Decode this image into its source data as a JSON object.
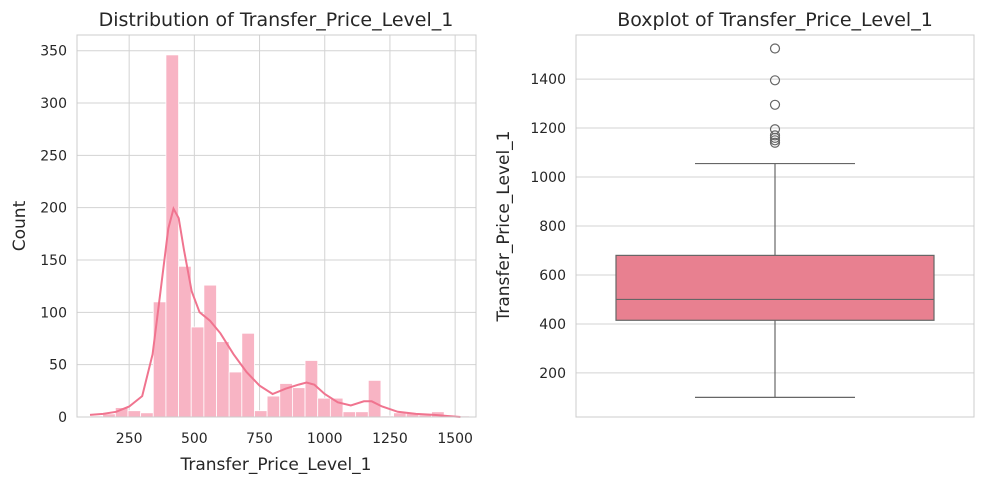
{
  "colors": {
    "bar": "#f8b4c4",
    "line": "#f0748f",
    "box": "#e88090",
    "whisker": "#666666",
    "grid": "#d3d3d3",
    "frame": "#cccccc"
  },
  "chart_data": [
    {
      "type": "bar",
      "title": "Distribution of Transfer_Price_Level_1",
      "xlabel": "Transfer_Price_Level_1",
      "ylabel": "Count",
      "xlim": [
        50,
        1580
      ],
      "ylim": [
        0,
        365
      ],
      "xticks": [
        250,
        500,
        750,
        1000,
        1250,
        1500
      ],
      "yticks": [
        0,
        50,
        100,
        150,
        200,
        250,
        300,
        350
      ],
      "grid": true,
      "bins": [
        {
          "x0": 100,
          "x1": 148.5,
          "count": 1
        },
        {
          "x0": 148.5,
          "x1": 197,
          "count": 3
        },
        {
          "x0": 197,
          "x1": 245.5,
          "count": 9
        },
        {
          "x0": 245.5,
          "x1": 294,
          "count": 6
        },
        {
          "x0": 294,
          "x1": 342.5,
          "count": 4
        },
        {
          "x0": 342.5,
          "x1": 391,
          "count": 110
        },
        {
          "x0": 391,
          "x1": 439.5,
          "count": 346
        },
        {
          "x0": 439.5,
          "x1": 488,
          "count": 144
        },
        {
          "x0": 488,
          "x1": 536.5,
          "count": 86
        },
        {
          "x0": 536.5,
          "x1": 585,
          "count": 126
        },
        {
          "x0": 585,
          "x1": 633.5,
          "count": 72
        },
        {
          "x0": 633.5,
          "x1": 682,
          "count": 43
        },
        {
          "x0": 682,
          "x1": 730.5,
          "count": 80
        },
        {
          "x0": 730.5,
          "x1": 779,
          "count": 6
        },
        {
          "x0": 779,
          "x1": 827.5,
          "count": 20
        },
        {
          "x0": 827.5,
          "x1": 876,
          "count": 32
        },
        {
          "x0": 876,
          "x1": 924.5,
          "count": 28
        },
        {
          "x0": 924.5,
          "x1": 973,
          "count": 54
        },
        {
          "x0": 973,
          "x1": 1021.5,
          "count": 18
        },
        {
          "x0": 1021.5,
          "x1": 1070,
          "count": 18
        },
        {
          "x0": 1070,
          "x1": 1118.5,
          "count": 5
        },
        {
          "x0": 1118.5,
          "x1": 1167,
          "count": 5
        },
        {
          "x0": 1167,
          "x1": 1215.5,
          "count": 35
        },
        {
          "x0": 1215.5,
          "x1": 1264,
          "count": 1
        },
        {
          "x0": 1264,
          "x1": 1312.5,
          "count": 4
        },
        {
          "x0": 1312.5,
          "x1": 1361,
          "count": 4
        },
        {
          "x0": 1361,
          "x1": 1409.5,
          "count": 2
        },
        {
          "x0": 1409.5,
          "x1": 1458,
          "count": 5
        },
        {
          "x0": 1458,
          "x1": 1506.5,
          "count": 1
        },
        {
          "x0": 1506.5,
          "x1": 1555,
          "count": 1
        }
      ],
      "kde": [
        [
          100,
          2
        ],
        [
          150,
          3
        ],
        [
          200,
          5
        ],
        [
          250,
          10
        ],
        [
          300,
          20
        ],
        [
          340,
          60
        ],
        [
          370,
          120
        ],
        [
          400,
          180
        ],
        [
          420,
          199
        ],
        [
          440,
          190
        ],
        [
          460,
          160
        ],
        [
          490,
          120
        ],
        [
          520,
          100
        ],
        [
          560,
          92
        ],
        [
          600,
          80
        ],
        [
          650,
          60
        ],
        [
          700,
          43
        ],
        [
          750,
          30
        ],
        [
          800,
          22
        ],
        [
          850,
          27
        ],
        [
          900,
          31
        ],
        [
          930,
          33
        ],
        [
          960,
          31
        ],
        [
          1000,
          22
        ],
        [
          1050,
          14
        ],
        [
          1100,
          11
        ],
        [
          1150,
          15
        ],
        [
          1180,
          15
        ],
        [
          1220,
          10
        ],
        [
          1280,
          5
        ],
        [
          1350,
          3
        ],
        [
          1420,
          2
        ],
        [
          1470,
          1
        ],
        [
          1520,
          0
        ]
      ]
    },
    {
      "type": "box",
      "title": "Boxplot of Transfer_Price_Level_1",
      "ylabel": "Transfer_Price_Level_1",
      "ylim": [
        20,
        1580
      ],
      "yticks": [
        200,
        400,
        600,
        800,
        1000,
        1200,
        1400
      ],
      "grid": true,
      "whisker_low": 100,
      "q1": 415,
      "median": 500,
      "q3": 680,
      "whisker_high": 1055,
      "outliers": [
        1140,
        1150,
        1160,
        1170,
        1195,
        1295,
        1395,
        1525
      ]
    }
  ]
}
